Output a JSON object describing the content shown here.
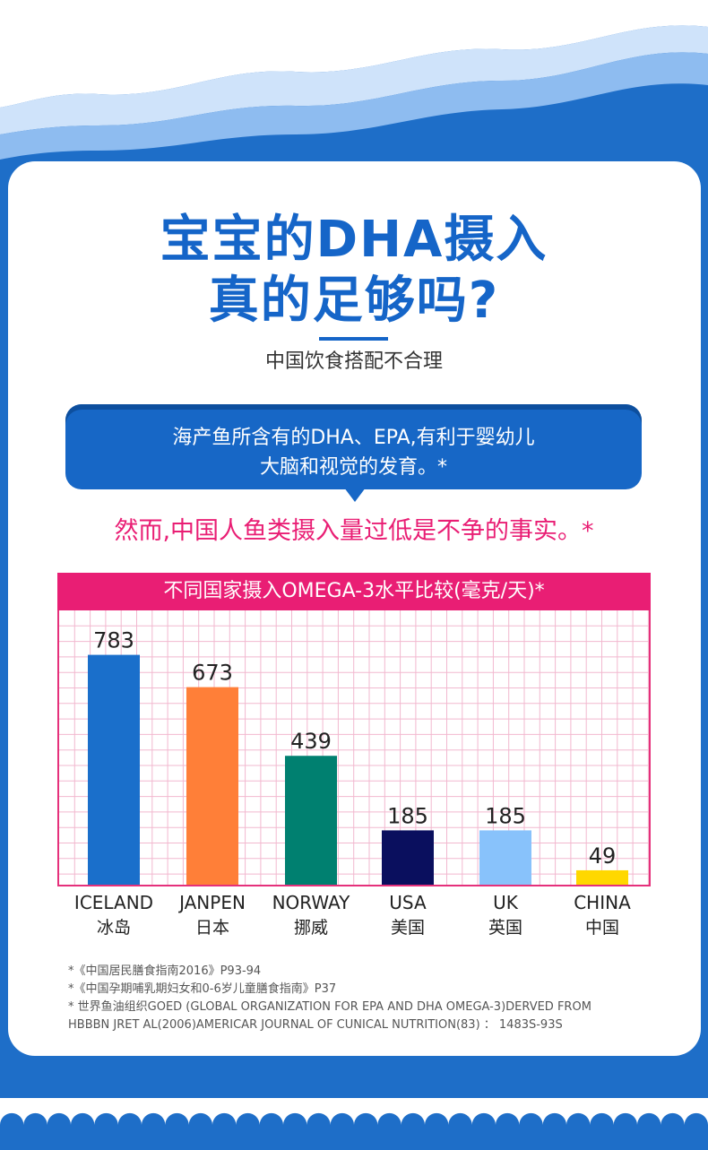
{
  "header": {
    "title_line1": "宝宝的DHA摄入",
    "title_line2": "真的足够吗?",
    "subtitle": "中国饮食搭配不合理"
  },
  "bubble": {
    "line1": "海产鱼所含有的DHA、EPA,有利于婴幼儿",
    "line2": "大脑和视觉的发育。*"
  },
  "highlight": "然而,中国人鱼类摄入量过低是不争的事实。*",
  "colors": {
    "brand_blue": "#1e6ec8",
    "title_blue": "#1565c8",
    "pink": "#e91e74",
    "grid_line": "#f2b8cf"
  },
  "chart_data": {
    "type": "bar",
    "title": "不同国家摄入OMEGA-3水平比较(毫克/天)*",
    "categories": [
      "ICELAND",
      "JANPEN",
      "NORWAY",
      "USA",
      "UK",
      "CHINA"
    ],
    "categories_zh": [
      "冰岛",
      "日本",
      "挪威",
      "美国",
      "英国",
      "中国"
    ],
    "values": [
      783,
      673,
      439,
      185,
      185,
      49
    ],
    "bar_colors": [
      "#1a6fcb",
      "#ff7f38",
      "#008070",
      "#0a0f5e",
      "#88c2fb",
      "#ffd800"
    ],
    "value_labels": [
      "783",
      "673",
      "439",
      "185",
      "185",
      "49"
    ],
    "ylim": [
      0,
      910
    ],
    "grid": true,
    "legend": "none"
  },
  "footnotes": [
    "*《中国居民膳食指南2016》P93-94",
    "*《中国孕期哺乳期妇女和0-6岁儿童膳食指南》P37",
    "* 世界鱼油组织GOED (GLOBAL ORGANIZATION FOR EPA AND DHA OMEGA-3)DERVED FROM",
    "HBBBN JRET AL(2006)AMERICAR JOURNAL OF CUNICAL NUTRITION(83) ： 1483S-93S"
  ]
}
